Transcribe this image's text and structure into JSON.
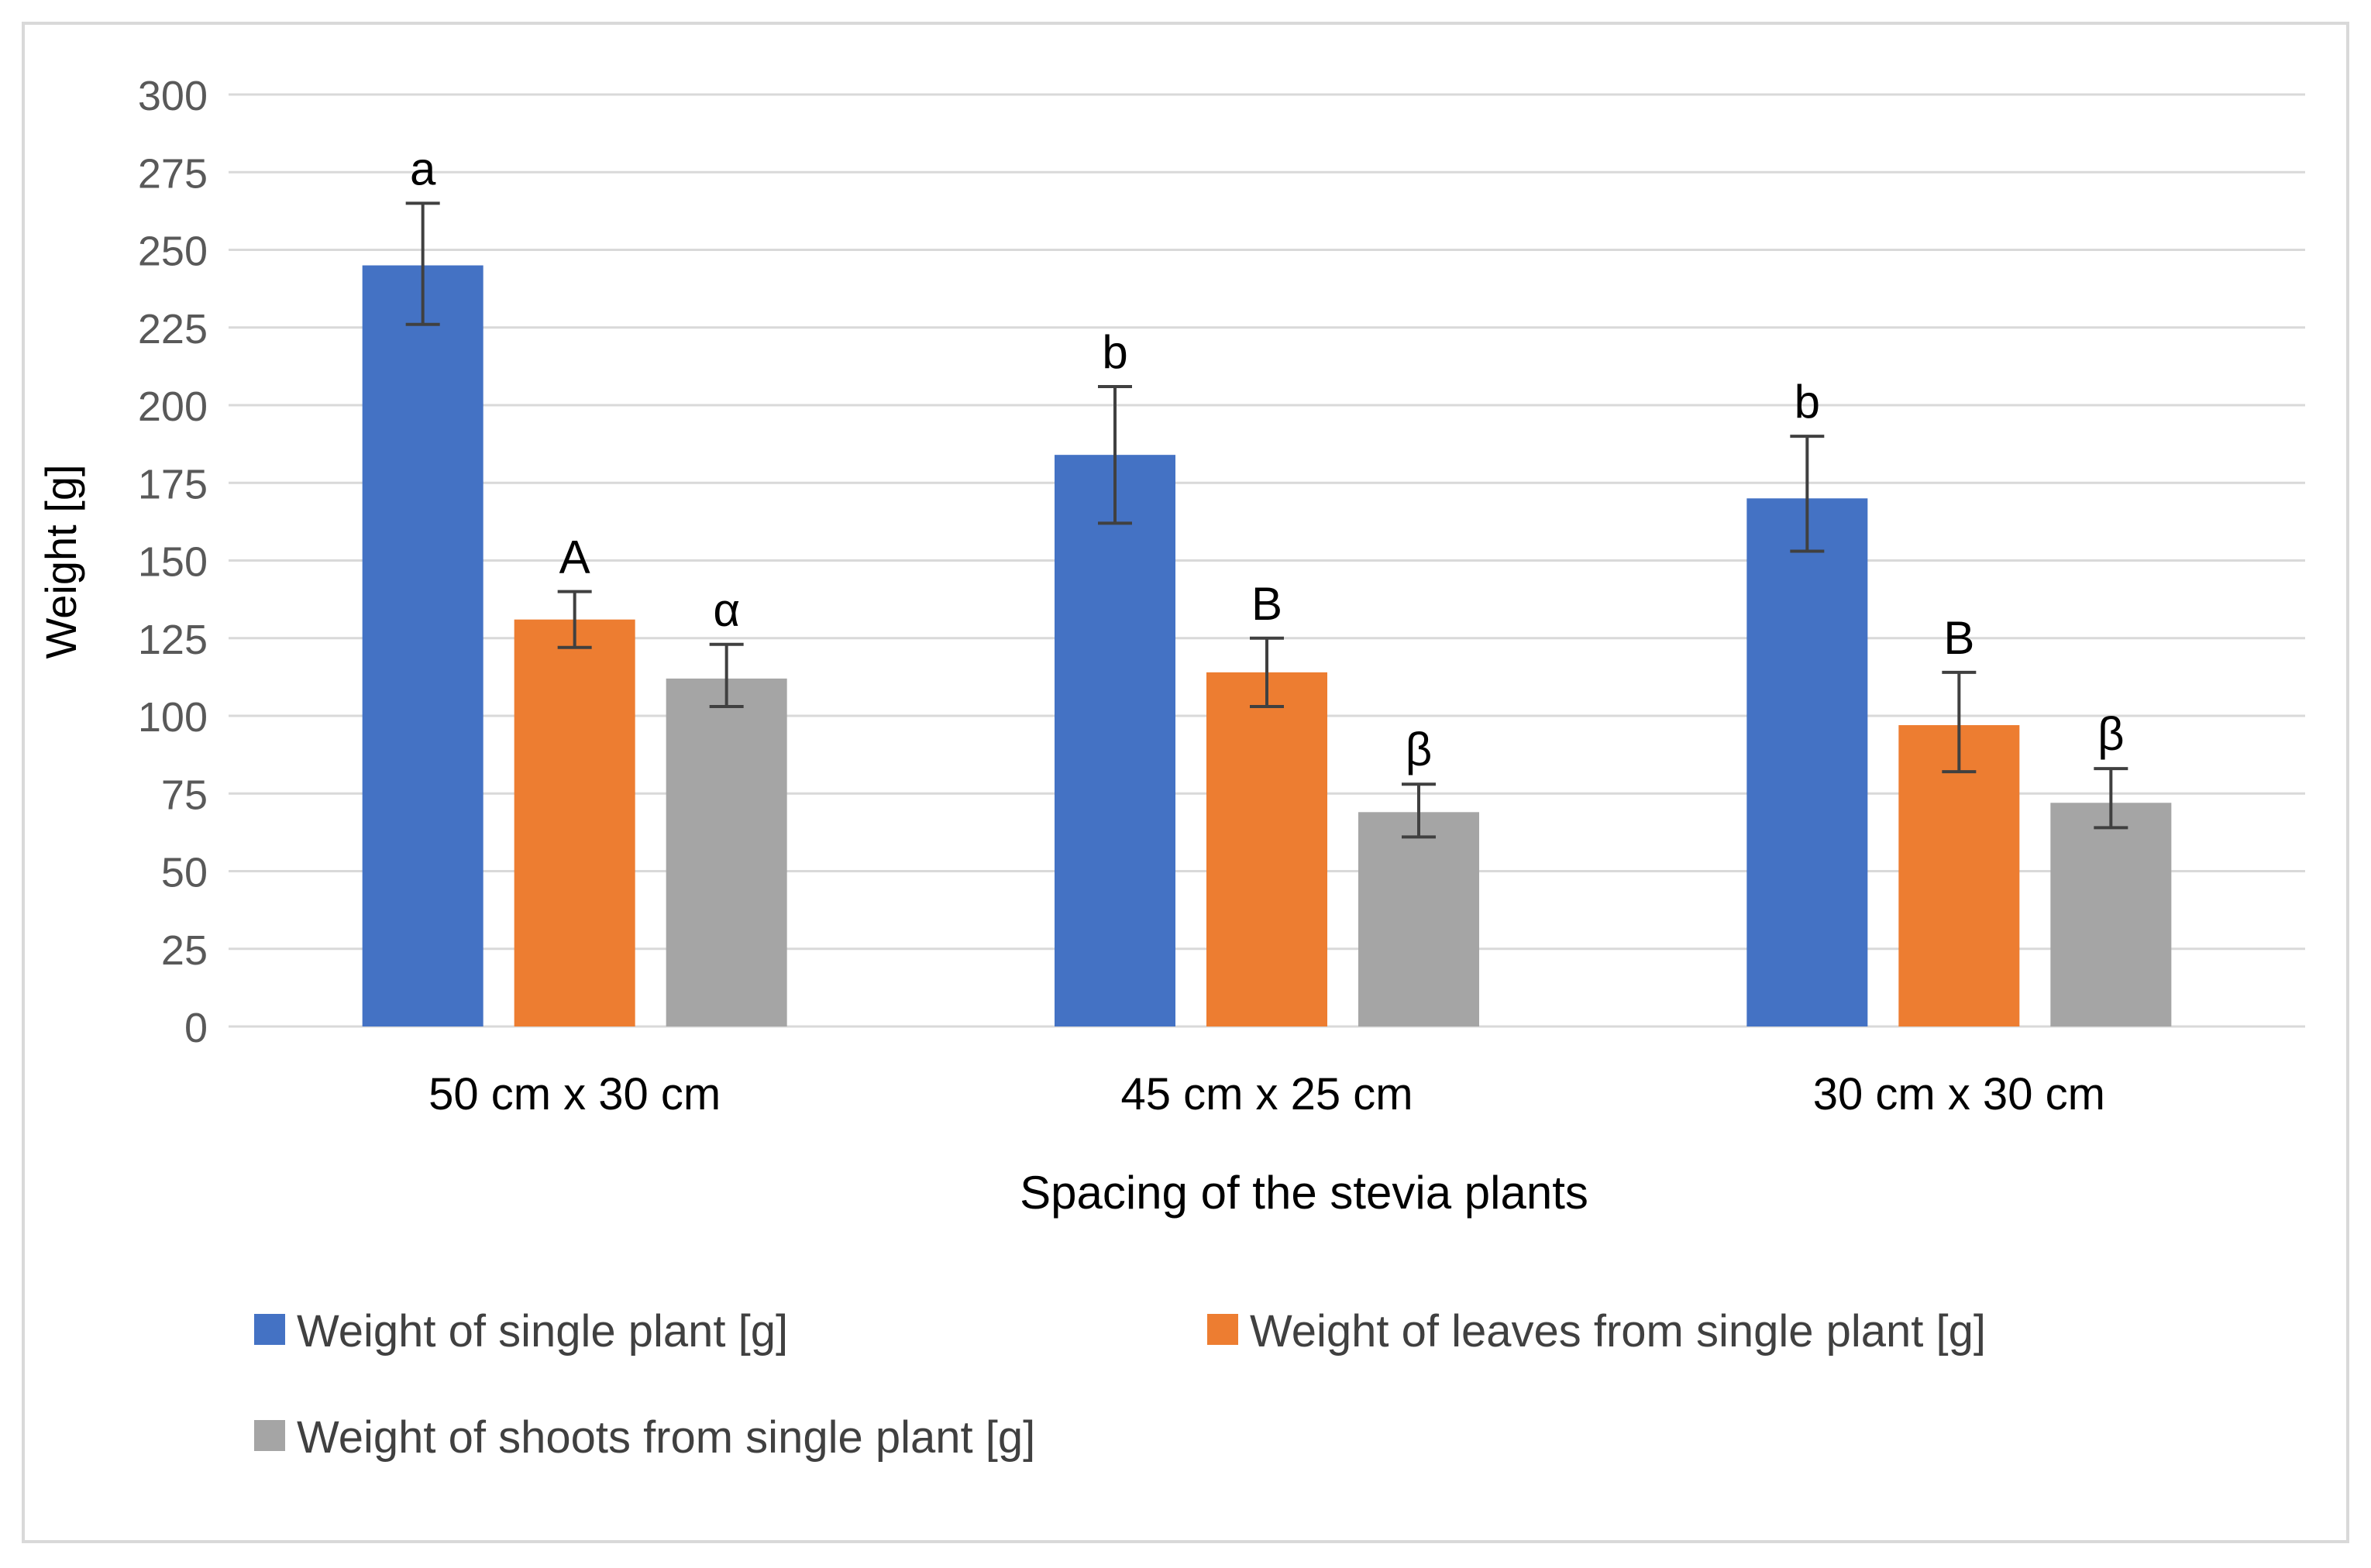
{
  "chart_data": {
    "type": "bar",
    "title": "",
    "xlabel": "Spacing of the stevia plants",
    "ylabel": "Weight [g]",
    "ylim": [
      0,
      300
    ],
    "yticks": [
      0,
      25,
      50,
      75,
      100,
      125,
      150,
      175,
      200,
      225,
      250,
      275,
      300
    ],
    "grid": true,
    "legend_position": "bottom",
    "categories": [
      "50 cm x 30 cm",
      "45 cm x 25 cm",
      "30 cm x 30 cm"
    ],
    "series": [
      {
        "name": "Weight of single plant [g]",
        "color": "#4472C4",
        "values": [
          245,
          184,
          170
        ],
        "error_low": [
          226,
          162,
          153
        ],
        "error_high": [
          265,
          206,
          190
        ],
        "labels": [
          "a",
          "b",
          "b"
        ]
      },
      {
        "name": "Weight of leaves from single plant [g]",
        "color": "#ED7D31",
        "values": [
          131,
          114,
          97
        ],
        "error_low": [
          122,
          103,
          82
        ],
        "error_high": [
          140,
          125,
          114
        ],
        "labels": [
          "A",
          "B",
          "B"
        ]
      },
      {
        "name": "Weight of shoots from single plant [g]",
        "color": "#A5A5A5",
        "values": [
          112,
          69,
          72
        ],
        "error_low": [
          103,
          61,
          64
        ],
        "error_high": [
          123,
          78,
          83
        ],
        "labels": [
          "α",
          "β",
          "β"
        ]
      }
    ]
  }
}
